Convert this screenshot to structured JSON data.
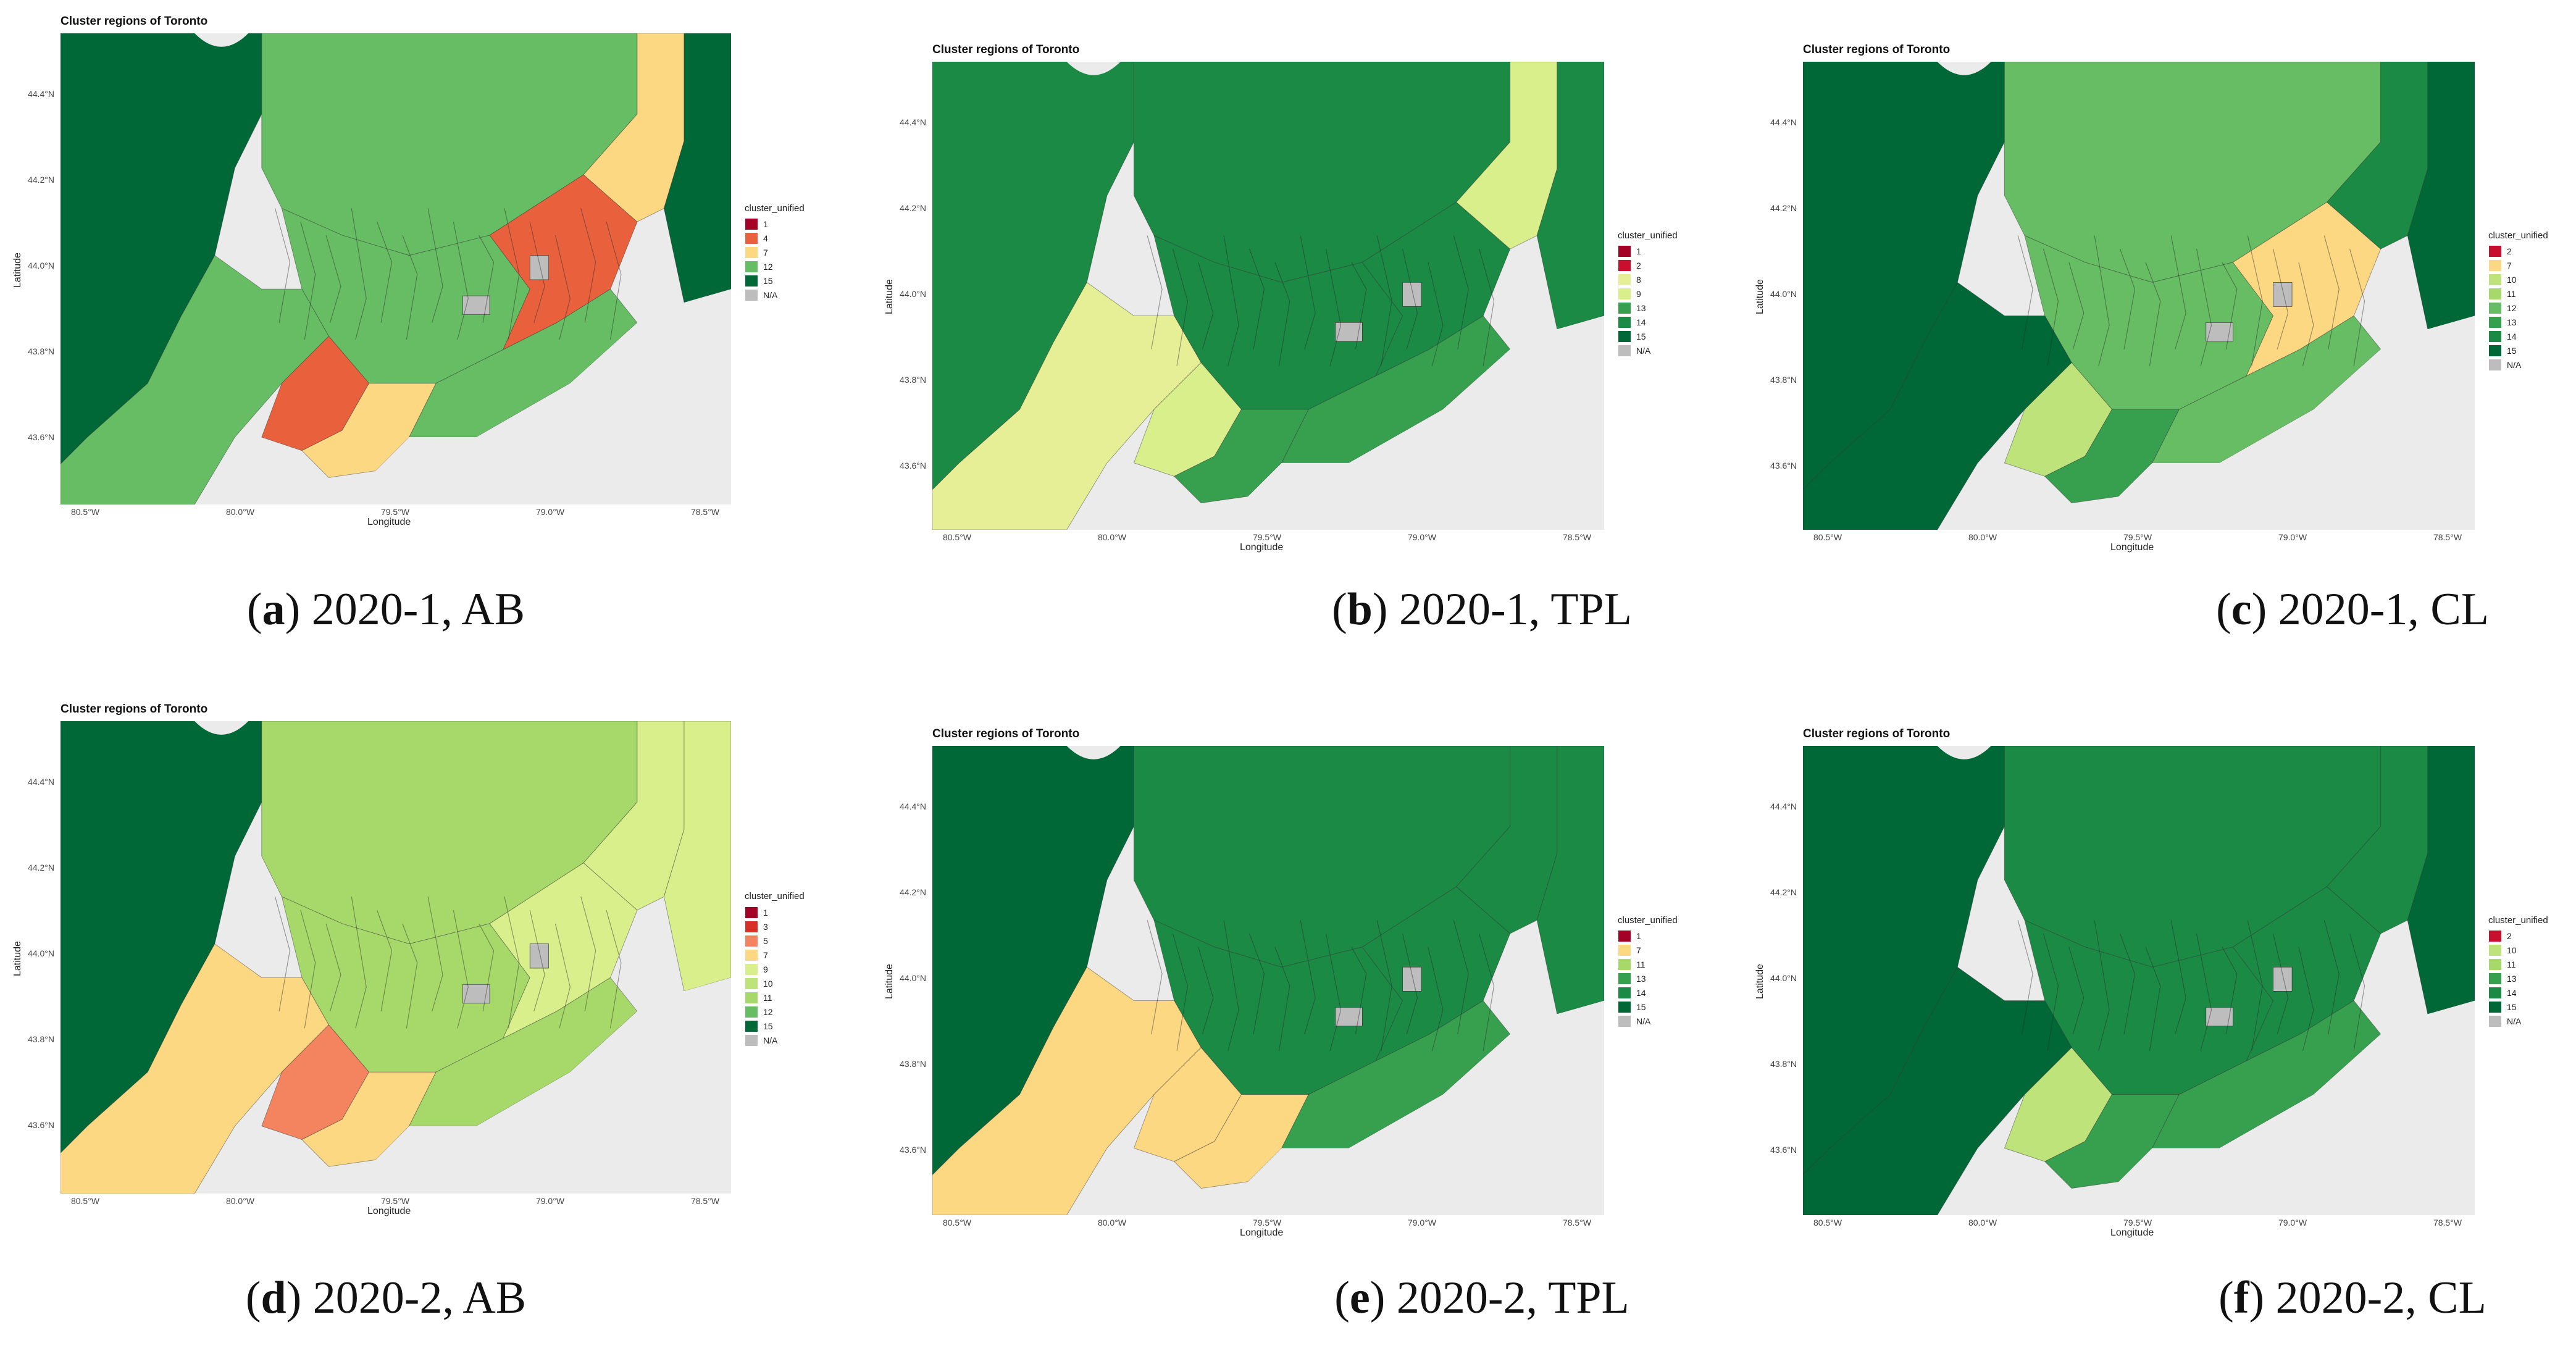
{
  "map_title": "Cluster regions of Toronto",
  "axis_x_title": "Longitude",
  "axis_y_title": "Latitude",
  "x_ticks": [
    "80.5°W",
    "80.0°W",
    "79.5°W",
    "79.0°W",
    "78.5°W"
  ],
  "y_ticks": [
    "44.4°N",
    "44.2°N",
    "44.0°N",
    "43.8°N",
    "43.6°N"
  ],
  "legend_title": "cluster_unified",
  "cluster_colors": {
    "1": "#a50026",
    "2": "#c8102e",
    "3": "#d73027",
    "4": "#e8603c",
    "5": "#f4845f",
    "7": "#fdd883",
    "8": "#e6ef96",
    "9": "#d9ef8b",
    "10": "#bde37a",
    "11": "#a6d96a",
    "12": "#66bd63",
    "13": "#36a04f",
    "14": "#1a8a44",
    "15": "#006837",
    "N/A": "#bdbdbd"
  },
  "panels": [
    {
      "id": "a",
      "caption_letter": "a",
      "caption_text": "2020-1, AB",
      "legend": [
        "1",
        "4",
        "7",
        "12",
        "15",
        "N/A"
      ],
      "zones": {
        "far_west": "15",
        "north": "12",
        "core": "12",
        "west_suburb": "12",
        "inner_west": "4",
        "east_suburb": "4",
        "east": "7",
        "downtown_south": "7",
        "far_east": "15",
        "inner_city": "12"
      }
    },
    {
      "id": "b",
      "caption_letter": "b",
      "caption_text": "2020-1, TPL",
      "legend": [
        "1",
        "2",
        "8",
        "9",
        "13",
        "14",
        "15",
        "N/A"
      ],
      "zones": {
        "far_west": "14",
        "north": "14",
        "core": "14",
        "west_suburb": "8",
        "inner_west": "9",
        "east_suburb": "14",
        "east": "9",
        "downtown_south": "13",
        "far_east": "14",
        "inner_city": "13"
      }
    },
    {
      "id": "c",
      "caption_letter": "c",
      "caption_text": "2020-1, CL",
      "legend": [
        "2",
        "7",
        "10",
        "11",
        "12",
        "13",
        "14",
        "15",
        "N/A"
      ],
      "zones": {
        "far_west": "15",
        "north": "12",
        "core": "12",
        "west_suburb": "15",
        "inner_west": "10",
        "east_suburb": "7",
        "east": "14",
        "downtown_south": "13",
        "far_east": "15",
        "inner_city": "12"
      }
    },
    {
      "id": "d",
      "caption_letter": "d",
      "caption_text": "2020-2, AB",
      "legend": [
        "1",
        "3",
        "5",
        "7",
        "9",
        "10",
        "11",
        "12",
        "15",
        "N/A"
      ],
      "zones": {
        "far_west": "15",
        "north": "11",
        "core": "11",
        "west_suburb": "7",
        "inner_west": "5",
        "east_suburb": "9",
        "east": "9",
        "downtown_south": "7",
        "far_east": "9",
        "inner_city": "11"
      }
    },
    {
      "id": "e",
      "caption_letter": "e",
      "caption_text": "2020-2, TPL",
      "legend": [
        "1",
        "7",
        "11",
        "13",
        "14",
        "15",
        "N/A"
      ],
      "zones": {
        "far_west": "15",
        "north": "14",
        "core": "14",
        "west_suburb": "7",
        "inner_west": "7",
        "east_suburb": "14",
        "east": "14",
        "downtown_south": "7",
        "far_east": "14",
        "inner_city": "13"
      }
    },
    {
      "id": "f",
      "caption_letter": "f",
      "caption_text": "2020-2, CL",
      "legend": [
        "2",
        "10",
        "11",
        "13",
        "14",
        "15",
        "N/A"
      ],
      "zones": {
        "far_west": "15",
        "north": "14",
        "core": "14",
        "west_suburb": "15",
        "inner_west": "10",
        "east_suburb": "14",
        "east": "14",
        "downtown_south": "13",
        "far_east": "15",
        "inner_city": "13"
      }
    }
  ]
}
